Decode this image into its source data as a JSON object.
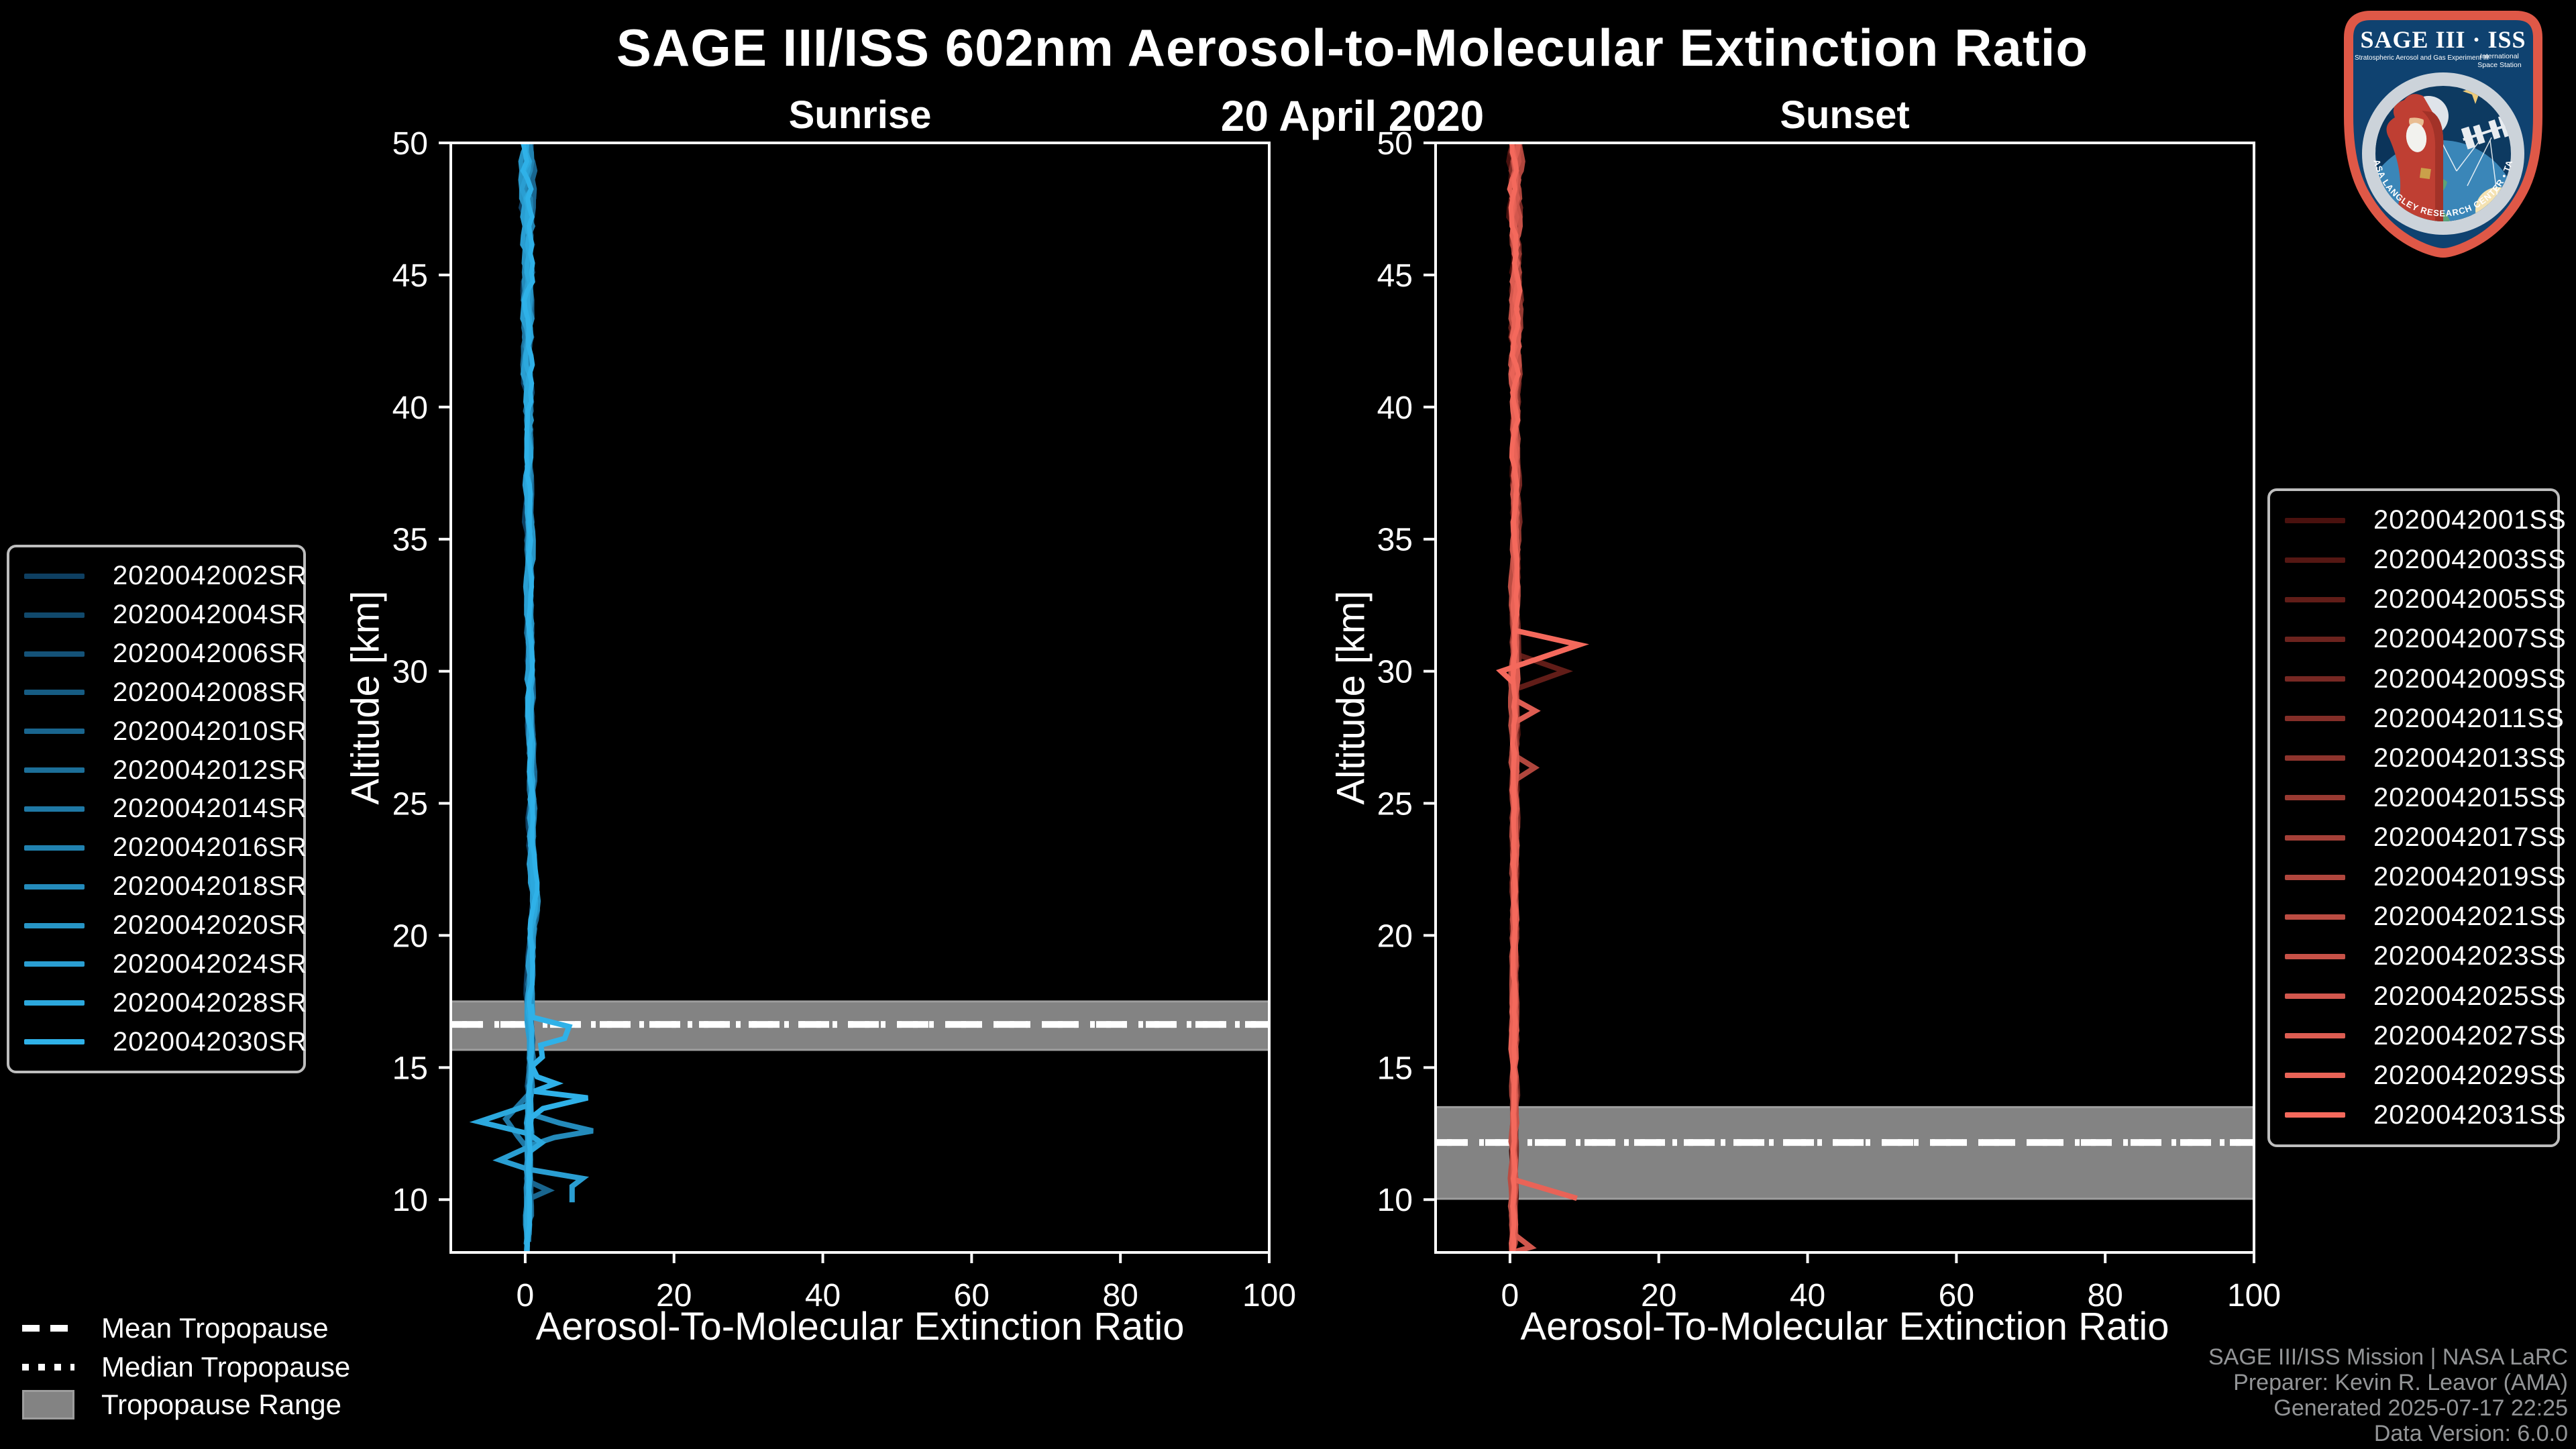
{
  "header": {
    "title": "SAGE III/ISS 602nm Aerosol-to-Molecular Extinction Ratio",
    "date": "20 April 2020"
  },
  "logo": {
    "title": "SAGE III · ISS",
    "subtitle": "Stratospheric Aerosol and Gas Experiment III",
    "subtitle_right_1": "International",
    "subtitle_right_2": "Space Station",
    "ring_text": "BALL • NASA LANGLEY RESEARCH CENTER • TAS-I • ESA"
  },
  "tropopause_legend": {
    "items": [
      {
        "label": "Mean Tropopause",
        "style": "dashed"
      },
      {
        "label": "Median Tropopause",
        "style": "dotted"
      },
      {
        "label": "Tropopause Range",
        "style": "patch"
      }
    ]
  },
  "footer": {
    "lines": [
      "SAGE III/ISS Mission | NASA LaRC",
      "Preparer: Kevin R. Leavor (AMA)",
      "Generated 2025-07-17 22:25",
      "Data Version: 6.0.0"
    ]
  },
  "colors": {
    "background": "#000000",
    "axis": "#ffffff",
    "tropopause_band": "#838383",
    "tropopause_band_edge": "#9e9e9e",
    "tropopause_line": "#ffffff",
    "legend_border": "#bdbdbd",
    "footer_text": "#939597",
    "logo_border_red": "#df5847",
    "logo_field_navy": "#0f4270"
  },
  "chart_data": [
    {
      "type": "line",
      "title": "Sunrise",
      "xlabel": "Aerosol-To-Molecular Extinction Ratio",
      "ylabel": "Altitude [km]",
      "xlim": [
        -10,
        100
      ],
      "ylim": [
        8,
        50
      ],
      "xticks": [
        0,
        20,
        40,
        60,
        80,
        100
      ],
      "yticks": [
        10,
        15,
        20,
        25,
        30,
        35,
        40,
        45,
        50
      ],
      "grid": false,
      "legend_position": "left",
      "tropopause": {
        "mean_km": 16.63,
        "median_km": 16.63,
        "range_km": [
          15.67,
          17.5
        ]
      },
      "base_profile": [
        [
          50,
          0.2
        ],
        [
          45,
          0.3
        ],
        [
          40,
          0.45
        ],
        [
          35,
          0.55
        ],
        [
          30,
          0.65
        ],
        [
          25,
          0.8
        ],
        [
          22.5,
          1.0
        ],
        [
          21.5,
          1.4
        ],
        [
          20.5,
          1.0
        ],
        [
          19,
          0.8
        ],
        [
          17.5,
          0.6
        ],
        [
          16,
          0.7
        ],
        [
          15,
          0.8
        ],
        [
          14,
          0.6
        ],
        [
          13,
          0.5
        ],
        [
          12,
          0.5
        ],
        [
          11,
          0.4
        ],
        [
          10,
          0.35
        ],
        [
          8,
          0.3
        ]
      ],
      "noise_amp": [
        [
          50,
          1.1
        ],
        [
          44,
          0.8
        ],
        [
          38,
          0.5
        ],
        [
          30,
          0.4
        ],
        [
          22,
          0.45
        ],
        [
          16,
          0.35
        ],
        [
          8,
          0.35
        ]
      ],
      "series": [
        {
          "name": "2020042002SR",
          "color": "#0E3F61",
          "bottom_km": 10.8,
          "offset": -0.3
        },
        {
          "name": "2020042004SR",
          "color": "#11496C",
          "bottom_km": 10.2,
          "offset": 0.2
        },
        {
          "name": "2020042006SR",
          "color": "#145278",
          "bottom_km": 9.6,
          "offset": -0.15
        },
        {
          "name": "2020042008SR",
          "color": "#165C83",
          "bottom_km": 10.4,
          "offset": 0.1
        },
        {
          "name": "2020042010SR",
          "color": "#19658E",
          "bottom_km": 9.2,
          "offset": 0.3
        },
        {
          "name": "2020042012SR",
          "color": "#1C6F99",
          "bottom_km": 8.8,
          "offset": -0.2
        },
        {
          "name": "2020042014SR",
          "color": "#1F78A5",
          "bottom_km": 9.8,
          "offset": 0.05
        },
        {
          "name": "2020042016SR",
          "color": "#2182B0",
          "bottom_km": 8.4,
          "offset": 0.25
        },
        {
          "name": "2020042018SR",
          "color": "#248BBB",
          "bottom_km": 8.0,
          "offset": -0.1
        },
        {
          "name": "2020042020SR",
          "color": "#2795C6",
          "bottom_km": 8.6,
          "offset": 0.15
        },
        {
          "name": "2020042024SR",
          "color": "#2A9ED2",
          "bottom_km": 8.0,
          "offset": -0.25
        },
        {
          "name": "2020042028SR",
          "color": "#2CA8DD",
          "bottom_km": 8.2,
          "offset": 0.1
        },
        {
          "name": "2020042030SR",
          "color": "#2FB1E8",
          "bottom_km": 8.0,
          "offset": 0.0
        }
      ],
      "features": [
        {
          "series_index": 12,
          "points": [
            [
              0.8,
              17.4
            ],
            [
              1.0,
              16.9
            ],
            [
              5.9,
              16.55
            ],
            [
              5.3,
              16.1
            ],
            [
              2.1,
              15.85
            ],
            [
              2.3,
              15.4
            ],
            [
              0.9,
              15.05
            ],
            [
              1.6,
              14.65
            ],
            [
              4.1,
              14.4
            ],
            [
              1.2,
              14.1
            ],
            [
              8.4,
              13.85
            ],
            [
              2.4,
              13.45
            ],
            [
              0.8,
              13.1
            ],
            [
              0.6,
              12.6
            ]
          ]
        },
        {
          "series_index": 11,
          "points": [
            [
              0.7,
              13.6
            ],
            [
              -6.2,
              12.95
            ],
            [
              0.4,
              12.5
            ],
            [
              2.2,
              12.15
            ],
            [
              0.5,
              11.8
            ]
          ]
        },
        {
          "series_index": 8,
          "points": [
            [
              0.6,
              13.25
            ],
            [
              4.6,
              12.9
            ],
            [
              9.1,
              12.6
            ],
            [
              3.9,
              12.35
            ],
            [
              0.7,
              12.05
            ]
          ]
        },
        {
          "series_index": 10,
          "points": [
            [
              0.5,
              12.0
            ],
            [
              -3.4,
              11.5
            ],
            [
              0.4,
              11.15
            ],
            [
              7.7,
              10.8
            ],
            [
              6.3,
              10.5
            ],
            [
              6.3,
              9.9
            ]
          ]
        },
        {
          "series_index": 6,
          "points": [
            [
              0.5,
              14.0
            ],
            [
              -2.6,
              13.05
            ],
            [
              -1.0,
              12.4
            ],
            [
              0.4,
              11.9
            ]
          ]
        },
        {
          "series_index": 4,
          "points": [
            [
              0.4,
              10.7
            ],
            [
              3.1,
              10.35
            ],
            [
              0.3,
              10.0
            ]
          ]
        }
      ]
    },
    {
      "type": "line",
      "title": "Sunset",
      "xlabel": "Aerosol-To-Molecular Extinction Ratio",
      "ylabel": "Altitude [km]",
      "xlim": [
        -10,
        100
      ],
      "ylim": [
        8,
        50
      ],
      "xticks": [
        0,
        20,
        40,
        60,
        80,
        100
      ],
      "yticks": [
        10,
        15,
        20,
        25,
        30,
        35,
        40,
        45,
        50
      ],
      "grid": false,
      "legend_position": "right",
      "tropopause": {
        "mean_km": 12.16,
        "median_km": 12.16,
        "range_km": [
          10.03,
          13.5
        ]
      },
      "base_profile": [
        [
          50,
          0.8
        ],
        [
          45,
          0.75
        ],
        [
          40,
          0.7
        ],
        [
          35,
          0.7
        ],
        [
          30,
          0.65
        ],
        [
          25,
          0.6
        ],
        [
          20,
          0.6
        ],
        [
          15,
          0.55
        ],
        [
          12,
          0.5
        ],
        [
          10,
          0.45
        ],
        [
          8,
          0.4
        ]
      ],
      "noise_amp": [
        [
          50,
          1.0
        ],
        [
          44,
          0.75
        ],
        [
          38,
          0.5
        ],
        [
          30,
          0.4
        ],
        [
          20,
          0.35
        ],
        [
          8,
          0.3
        ]
      ],
      "series": [
        {
          "name": "2020042001SS",
          "color": "#4A110E",
          "bottom_km": 9.4,
          "offset": -0.25
        },
        {
          "name": "2020042003SS",
          "color": "#551713",
          "bottom_km": 8.8,
          "offset": 0.2
        },
        {
          "name": "2020042005SS",
          "color": "#611D18",
          "bottom_km": 8.2,
          "offset": -0.1
        },
        {
          "name": "2020042007SS",
          "color": "#6C231E",
          "bottom_km": 9.0,
          "offset": 0.15
        },
        {
          "name": "2020042009SS",
          "color": "#772823",
          "bottom_km": 8.4,
          "offset": 0.3
        },
        {
          "name": "2020042011SS",
          "color": "#832E28",
          "bottom_km": 8.0,
          "offset": -0.2
        },
        {
          "name": "2020042013SS",
          "color": "#8E342D",
          "bottom_km": 8.6,
          "offset": 0.05
        },
        {
          "name": "2020042015SS",
          "color": "#993A32",
          "bottom_km": 8.2,
          "offset": 0.25
        },
        {
          "name": "2020042017SS",
          "color": "#A54038",
          "bottom_km": 8.0,
          "offset": -0.15
        },
        {
          "name": "2020042019SS",
          "color": "#B0463D",
          "bottom_km": 8.4,
          "offset": 0.1
        },
        {
          "name": "2020042021SS",
          "color": "#BB4C42",
          "bottom_km": 8.0,
          "offset": -0.3
        },
        {
          "name": "2020042023SS",
          "color": "#C75147",
          "bottom_km": 8.2,
          "offset": 0.2
        },
        {
          "name": "2020042025SS",
          "color": "#D2574D",
          "bottom_km": 8.0,
          "offset": -0.05
        },
        {
          "name": "2020042027SS",
          "color": "#DD5D52",
          "bottom_km": 8.0,
          "offset": 0.15
        },
        {
          "name": "2020042029SS",
          "color": "#E96357",
          "bottom_km": 8.0,
          "offset": -0.2
        },
        {
          "name": "2020042031SS",
          "color": "#F4695C",
          "bottom_km": 8.0,
          "offset": 0.0
        }
      ],
      "features": [
        {
          "series_index": 15,
          "points": [
            [
              0.6,
              31.55
            ],
            [
              9.3,
              31.0
            ],
            [
              -1.2,
              30.0
            ],
            [
              0.5,
              29.55
            ]
          ]
        },
        {
          "series_index": 2,
          "points": [
            [
              0.8,
              30.65
            ],
            [
              7.4,
              30.0
            ],
            [
              0.5,
              29.3
            ]
          ]
        },
        {
          "series_index": 13,
          "points": [
            [
              0.8,
              28.9
            ],
            [
              3.4,
              28.5
            ],
            [
              0.9,
              28.1
            ]
          ]
        },
        {
          "series_index": 9,
          "points": [
            [
              0.7,
              26.8
            ],
            [
              3.3,
              26.35
            ],
            [
              0.8,
              25.9
            ]
          ]
        },
        {
          "series_index": 14,
          "points": [
            [
              0.6,
              10.75
            ],
            [
              9.0,
              10.05
            ]
          ]
        },
        {
          "series_index": 12,
          "points": [
            [
              0.5,
              8.7
            ],
            [
              2.8,
              8.2
            ],
            [
              0.3,
              8.0
            ]
          ]
        }
      ]
    }
  ]
}
